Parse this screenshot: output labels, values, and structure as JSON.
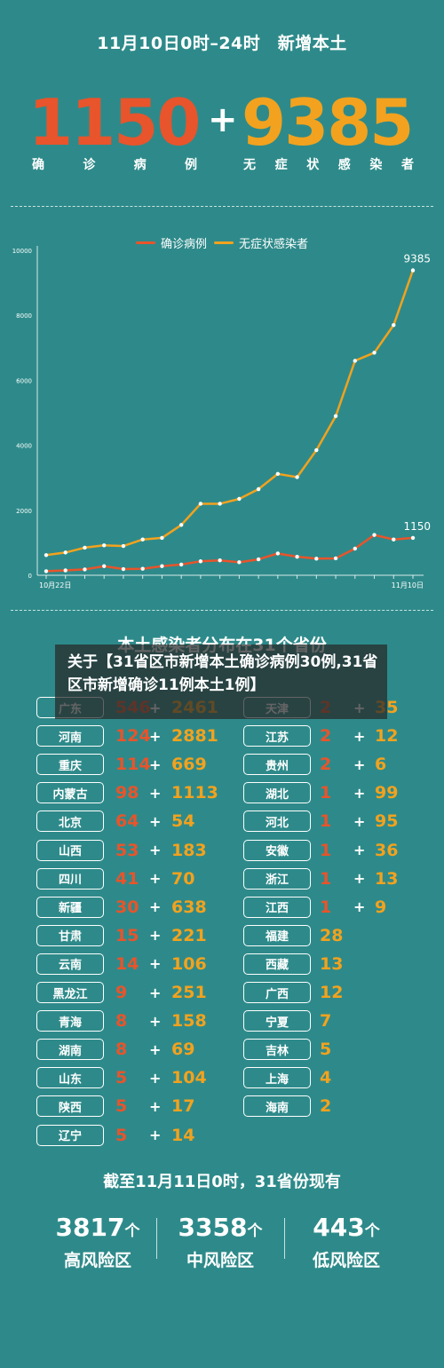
{
  "header": {
    "title": "11月10日0时–24时　新增本土",
    "confirmed": "1150",
    "plus": "+",
    "asymptomatic": "9385",
    "confirmed_caption": [
      "确",
      "诊",
      "病",
      "例"
    ],
    "asymptomatic_caption": [
      "无",
      "症",
      "状",
      "感",
      "染",
      "者"
    ]
  },
  "colors": {
    "background": "#2e8a8a",
    "confirmed": "#e8542b",
    "asymptomatic": "#f2a21e"
  },
  "chart_data": {
    "type": "line",
    "title": "",
    "x_start_label": "10月22日",
    "x_end_label": "11月10日",
    "ylim": [
      0,
      10000
    ],
    "y_ticks": [
      0,
      2000,
      4000,
      6000,
      8000,
      10000
    ],
    "y_tick_labels": [
      "0",
      "2000",
      "4000",
      "6000",
      "8000",
      "10000"
    ],
    "legend_position": "top-center",
    "series": [
      {
        "name": "确诊病例",
        "color": "#e8542b",
        "values": [
          125,
          150,
          180,
          280,
          190,
          200,
          280,
          330,
          430,
          460,
          400,
          490,
          670,
          570,
          510,
          520,
          820,
          1240,
          1100,
          1150
        ],
        "end_label": "1150"
      },
      {
        "name": "无症状感染者",
        "color": "#f2a21e",
        "values": [
          620,
          700,
          850,
          920,
          900,
          1100,
          1150,
          1550,
          2200,
          2200,
          2350,
          2650,
          3120,
          3020,
          3850,
          4900,
          6600,
          6850,
          7700,
          9385
        ],
        "end_label": "9385"
      }
    ]
  },
  "grid_title": "本土感染者分布在31个省份",
  "overlay_text": "关于【31省区市新增本土确诊病例30例,31省区市新增确诊11例本土1例】",
  "left_provinces": [
    {
      "name": "广东",
      "confirmed": "546",
      "plus": "+",
      "asym": "2461"
    },
    {
      "name": "河南",
      "confirmed": "124",
      "plus": "+",
      "asym": "2881"
    },
    {
      "name": "重庆",
      "confirmed": "114",
      "plus": "+",
      "asym": "669"
    },
    {
      "name": "内蒙古",
      "confirmed": "98",
      "plus": "+",
      "asym": "1113"
    },
    {
      "name": "北京",
      "confirmed": "64",
      "plus": "+",
      "asym": "54"
    },
    {
      "name": "山西",
      "confirmed": "53",
      "plus": "+",
      "asym": "183"
    },
    {
      "name": "四川",
      "confirmed": "41",
      "plus": "+",
      "asym": "70"
    },
    {
      "name": "新疆",
      "confirmed": "30",
      "plus": "+",
      "asym": "638"
    },
    {
      "name": "甘肃",
      "confirmed": "15",
      "plus": "+",
      "asym": "221"
    },
    {
      "name": "云南",
      "confirmed": "14",
      "plus": "+",
      "asym": "106"
    },
    {
      "name": "黑龙江",
      "confirmed": "9",
      "plus": "+",
      "asym": "251"
    },
    {
      "name": "青海",
      "confirmed": "8",
      "plus": "+",
      "asym": "158"
    },
    {
      "name": "湖南",
      "confirmed": "8",
      "plus": "+",
      "asym": "69"
    },
    {
      "name": "山东",
      "confirmed": "5",
      "plus": "+",
      "asym": "104"
    },
    {
      "name": "陕西",
      "confirmed": "5",
      "plus": "+",
      "asym": "17"
    },
    {
      "name": "辽宁",
      "confirmed": "5",
      "plus": "+",
      "asym": "14"
    }
  ],
  "right_provinces_both": [
    {
      "name": "天津",
      "confirmed": "2",
      "plus": "+",
      "asym": "35"
    },
    {
      "name": "江苏",
      "confirmed": "2",
      "plus": "+",
      "asym": "12"
    },
    {
      "name": "贵州",
      "confirmed": "2",
      "plus": "+",
      "asym": "6"
    },
    {
      "name": "湖北",
      "confirmed": "1",
      "plus": "+",
      "asym": "99"
    },
    {
      "name": "河北",
      "confirmed": "1",
      "plus": "+",
      "asym": "95"
    },
    {
      "name": "安徽",
      "confirmed": "1",
      "plus": "+",
      "asym": "36"
    },
    {
      "name": "浙江",
      "confirmed": "1",
      "plus": "+",
      "asym": "13"
    },
    {
      "name": "江西",
      "confirmed": "1",
      "plus": "+",
      "asym": "9"
    }
  ],
  "right_provinces_asym_only": [
    {
      "name": "福建",
      "asym": "28"
    },
    {
      "name": "西藏",
      "asym": "13"
    },
    {
      "name": "广西",
      "asym": "12"
    },
    {
      "name": "宁夏",
      "asym": "7"
    },
    {
      "name": "吉林",
      "asym": "5"
    },
    {
      "name": "上海",
      "asym": "4"
    },
    {
      "name": "海南",
      "asym": "2"
    }
  ],
  "footer": {
    "title": "截至11月11日0时，31省份现有",
    "unit": "个",
    "stats": [
      {
        "value": "3817",
        "label": "高风险区"
      },
      {
        "value": "3358",
        "label": "中风险区"
      },
      {
        "value": "443",
        "label": "低风险区"
      }
    ]
  }
}
